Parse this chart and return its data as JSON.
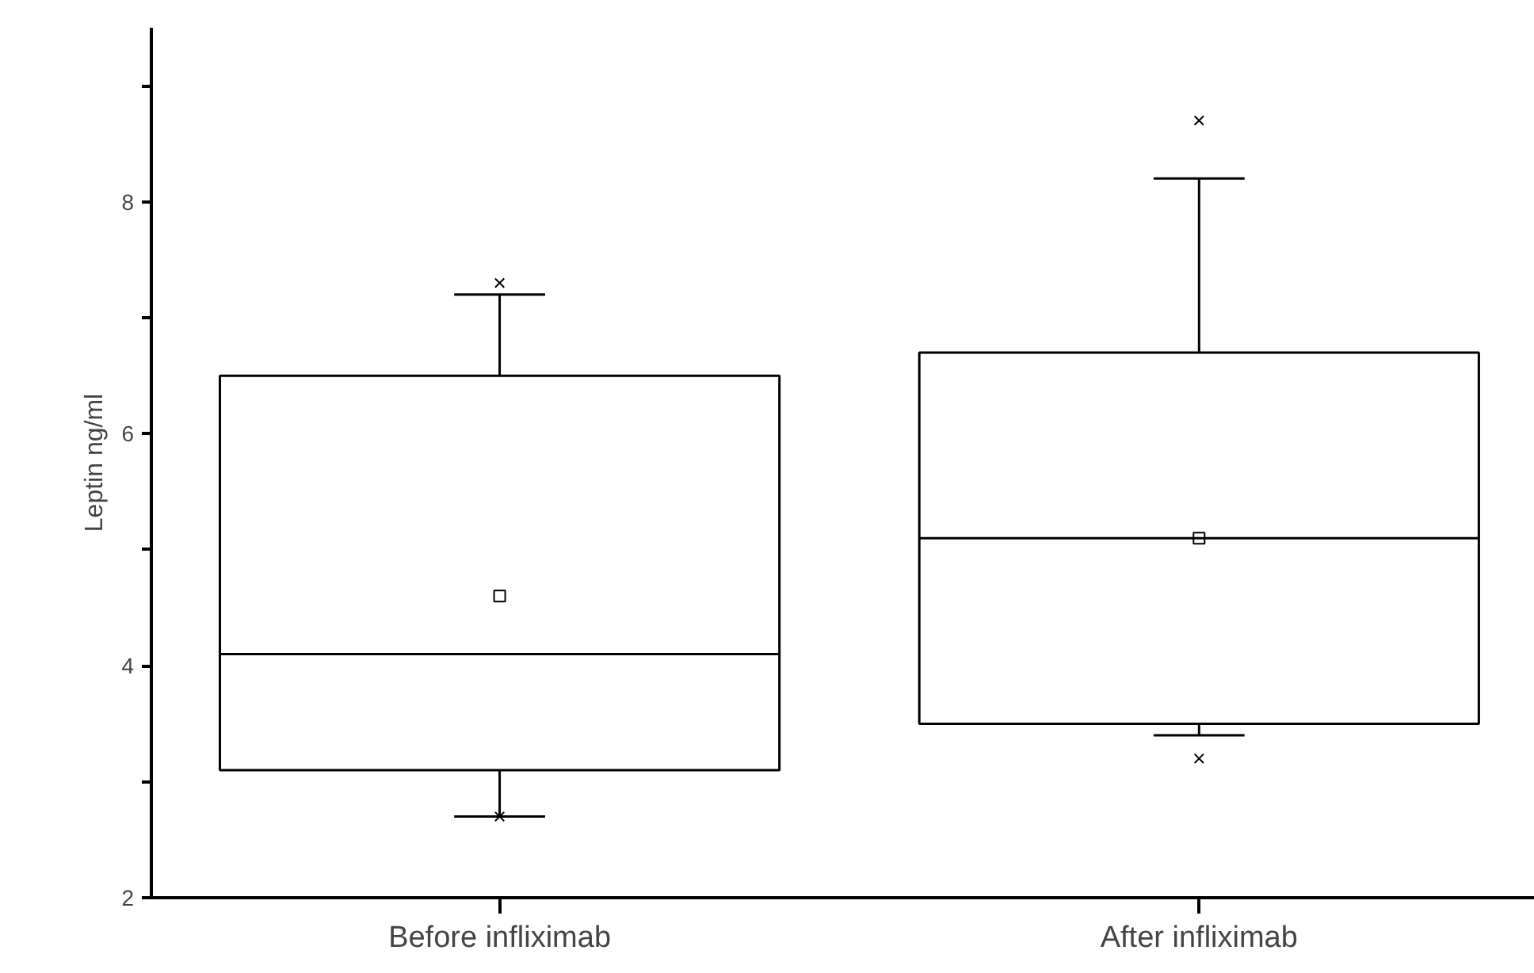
{
  "chart_data": {
    "type": "box",
    "ylabel": "Leptin ng/ml",
    "categories": [
      "Before infliximab",
      "After infliximab"
    ],
    "ylim": [
      2,
      9.5
    ],
    "yticks": [
      2,
      {
        "value": 3,
        "label": null
      },
      4,
      {
        "value": 5,
        "label": null
      },
      6,
      {
        "value": 7,
        "label": null
      },
      8,
      {
        "value": 9,
        "label": null
      }
    ],
    "color": "#000000",
    "boxes": [
      {
        "low": 2.7,
        "q1": 3.1,
        "median": 4.1,
        "q3": 6.5,
        "high": 7.2,
        "mean": 4.6,
        "outliers": [
          7.3,
          2.7
        ]
      },
      {
        "low": 3.4,
        "q1": 3.5,
        "median": 5.1,
        "q3": 6.7,
        "high": 8.2,
        "mean": 5.1,
        "outliers": [
          8.7,
          3.2
        ]
      }
    ]
  }
}
